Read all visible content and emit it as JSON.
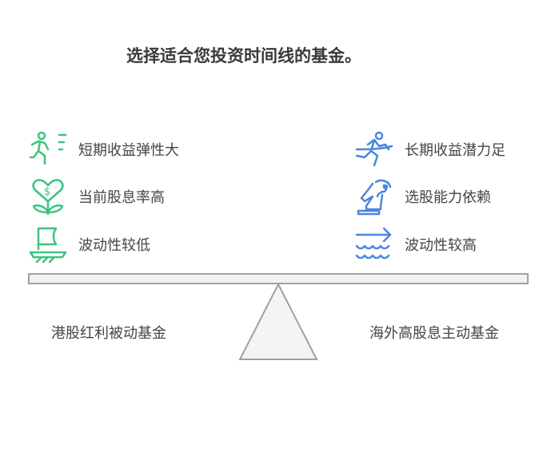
{
  "title": "选择适合您投资时间线的基金。",
  "colors": {
    "left": "#3cc47c",
    "right": "#4a86e0",
    "beam_fill": "#f2f2f2",
    "beam_stroke": "#a0a0a0"
  },
  "left": {
    "items": [
      {
        "icon": "running-person-icon",
        "label": "短期收益弹性大"
      },
      {
        "icon": "heart-dollar-plant-icon",
        "label": "当前股息率高"
      },
      {
        "icon": "sailboat-icon",
        "label": "波动性较低"
      }
    ],
    "fund": "港股红利被动基金"
  },
  "right": {
    "items": [
      {
        "icon": "runner-icon",
        "label": "长期收益潜力足"
      },
      {
        "icon": "chess-knight-icon",
        "label": "选股能力依赖"
      },
      {
        "icon": "waves-arrow-icon",
        "label": "波动性较高"
      }
    ],
    "fund": "海外高股息主动基金"
  }
}
